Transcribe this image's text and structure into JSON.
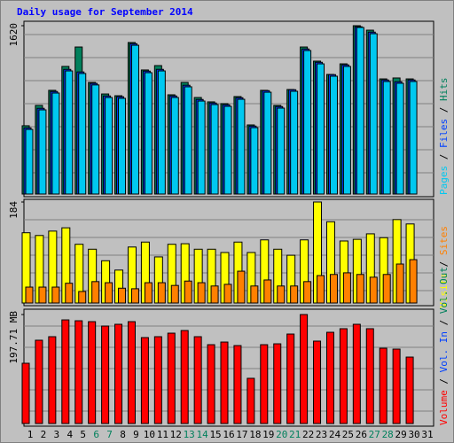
{
  "chart_data": [
    {
      "type": "bar",
      "title": "Daily usage for September 2014",
      "ylim": [
        0,
        1620
      ],
      "yticks": [
        1620
      ],
      "series": [
        {
          "name": "Hits",
          "color": "#00805c",
          "values": [
            657,
            853,
            998,
            1228,
            1415,
            1074,
            963,
            946,
            1458,
            1194,
            1236,
            955,
            1074,
            929,
            887,
            870,
            938,
            665,
            998,
            853,
            1006,
            1415,
            1279,
            1151,
            1253,
            1620,
            1577,
            1108,
            1117,
            1108,
            null
          ]
        },
        {
          "name": "Files",
          "color": "#0040ff",
          "values": [
            637,
            825,
            987,
            1200,
            1175,
            1065,
            944,
            936,
            1447,
            1183,
            1200,
            944,
            1047,
            910,
            876,
            859,
            927,
            654,
            995,
            842,
            1004,
            1396,
            1268,
            1149,
            1243,
            1610,
            1558,
            1098,
            1081,
            1098,
            null
          ]
        },
        {
          "name": "Pages",
          "color": "#00c8f0",
          "values": [
            622,
            810,
            972,
            1185,
            1160,
            1050,
            929,
            921,
            1432,
            1168,
            1185,
            929,
            1032,
            895,
            861,
            844,
            912,
            639,
            980,
            827,
            989,
            1381,
            1253,
            1134,
            1228,
            1603,
            1543,
            1083,
            1066,
            1083,
            null
          ]
        }
      ]
    },
    {
      "type": "bar",
      "ylim": [
        0,
        184
      ],
      "yticks": [
        184
      ],
      "series": [
        {
          "name": "Visits",
          "color": "#ffff00",
          "values": [
            128,
            123,
            131,
            137,
            107,
            98,
            77,
            60,
            102,
            111,
            84,
            107,
            108,
            98,
            98,
            92,
            111,
            92,
            115,
            98,
            87,
            115,
            184,
            148,
            113,
            116,
            126,
            119,
            152,
            144,
            null
          ]
        },
        {
          "name": "Sites",
          "color": "#ff8000",
          "values": [
            29,
            29,
            29,
            36,
            21,
            39,
            37,
            27,
            26,
            37,
            37,
            32,
            40,
            37,
            31,
            34,
            58,
            31,
            42,
            31,
            31,
            39,
            50,
            52,
            55,
            52,
            47,
            52,
            71,
            79,
            null
          ]
        }
      ]
    },
    {
      "type": "bar",
      "ylim": [
        0,
        197.71
      ],
      "yticks": [
        {
          "value": 197.71,
          "label": "197.71 MB"
        }
      ],
      "categories": [
        "1",
        "2",
        "3",
        "4",
        "5",
        "6",
        "7",
        "8",
        "9",
        "10",
        "11",
        "12",
        "13",
        "14",
        "15",
        "16",
        "17",
        "18",
        "19",
        "20",
        "21",
        "22",
        "23",
        "24",
        "25",
        "26",
        "27",
        "28",
        "29",
        "30",
        "31"
      ],
      "weekend_days": [
        "6",
        "7",
        "13",
        "14",
        "20",
        "21",
        "27",
        "28"
      ],
      "series": [
        {
          "name": "Volume",
          "color": "#ff0000",
          "values": [
            109.3,
            151.1,
            157.5,
            188.0,
            186.4,
            184.8,
            176.8,
            180.0,
            184.8,
            155.9,
            157.5,
            163.9,
            168.7,
            157.5,
            143.0,
            147.8,
            141.4,
            82.0,
            143.0,
            144.6,
            162.3,
            197.71,
            149.5,
            165.5,
            172.0,
            180.0,
            172.0,
            136.6,
            135.0,
            120.5,
            null
          ]
        }
      ],
      "extra_legend": [
        {
          "name": "Vol. In",
          "color": "#0040ff"
        },
        {
          "name": "Vol. Out",
          "color": "#00805c"
        }
      ]
    }
  ],
  "legend_separator": " / "
}
